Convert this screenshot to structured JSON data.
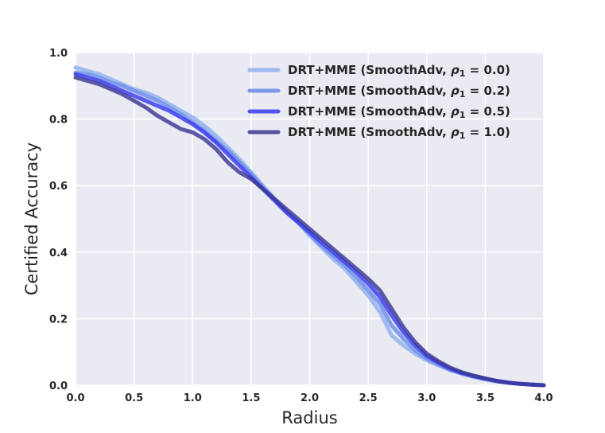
{
  "chart_data": {
    "type": "line",
    "title": "",
    "xlabel": "Radius",
    "ylabel": "Certified Accuracy",
    "xlim": [
      0.0,
      4.0
    ],
    "ylim": [
      0.0,
      1.0
    ],
    "xticks": [
      "0.0",
      "0.5",
      "1.0",
      "1.5",
      "2.0",
      "2.5",
      "3.0",
      "3.5",
      "4.0"
    ],
    "yticks": [
      "0.0",
      "0.2",
      "0.4",
      "0.6",
      "0.8",
      "1.0"
    ],
    "grid": true,
    "legend_position": "top-right",
    "background": "#eaeaf2",
    "series": [
      {
        "name": "DRT+MME (SmoothAdv, ρ1 = 0.0)",
        "legend_prefix": "DRT+MME (SmoothAdv, ",
        "legend_rho": "ρ",
        "legend_sub": "1",
        "legend_suffix": " = 0.0)",
        "color": "#8fb0ee",
        "x": [
          0.0,
          0.1,
          0.2,
          0.3,
          0.4,
          0.5,
          0.6,
          0.7,
          0.8,
          0.9,
          1.0,
          1.1,
          1.2,
          1.3,
          1.4,
          1.5,
          1.6,
          1.7,
          1.8,
          1.9,
          2.0,
          2.1,
          2.2,
          2.3,
          2.4,
          2.5,
          2.6,
          2.7,
          2.8,
          2.9,
          3.0,
          3.1,
          3.2,
          3.3,
          3.4,
          3.5,
          3.6,
          3.7,
          3.8,
          3.9,
          4.0
        ],
        "values": [
          0.955,
          0.945,
          0.935,
          0.92,
          0.905,
          0.89,
          0.88,
          0.865,
          0.845,
          0.825,
          0.805,
          0.78,
          0.75,
          0.715,
          0.68,
          0.64,
          0.6,
          0.56,
          0.52,
          0.49,
          0.45,
          0.415,
          0.38,
          0.35,
          0.31,
          0.27,
          0.22,
          0.15,
          0.12,
          0.095,
          0.075,
          0.06,
          0.045,
          0.035,
          0.025,
          0.018,
          0.012,
          0.007,
          0.004,
          0.002,
          0.0
        ]
      },
      {
        "name": "DRT+MME (SmoothAdv, ρ1 = 0.2)",
        "legend_prefix": "DRT+MME (SmoothAdv, ",
        "legend_rho": "ρ",
        "legend_sub": "1",
        "legend_suffix": " = 0.2)",
        "color": "#6b8cea",
        "x": [
          0.0,
          0.1,
          0.2,
          0.3,
          0.4,
          0.5,
          0.6,
          0.7,
          0.8,
          0.9,
          1.0,
          1.1,
          1.2,
          1.3,
          1.4,
          1.5,
          1.6,
          1.7,
          1.8,
          1.9,
          2.0,
          2.1,
          2.2,
          2.3,
          2.4,
          2.5,
          2.6,
          2.7,
          2.8,
          2.9,
          3.0,
          3.1,
          3.2,
          3.3,
          3.4,
          3.5,
          3.6,
          3.7,
          3.8,
          3.9,
          4.0
        ],
        "values": [
          0.94,
          0.935,
          0.925,
          0.91,
          0.9,
          0.885,
          0.87,
          0.855,
          0.835,
          0.815,
          0.79,
          0.765,
          0.735,
          0.705,
          0.67,
          0.635,
          0.595,
          0.56,
          0.52,
          0.49,
          0.455,
          0.42,
          0.39,
          0.36,
          0.325,
          0.285,
          0.245,
          0.18,
          0.14,
          0.105,
          0.08,
          0.063,
          0.047,
          0.035,
          0.026,
          0.018,
          0.012,
          0.007,
          0.004,
          0.002,
          0.0
        ]
      },
      {
        "name": "DRT+MME (SmoothAdv, ρ1 = 0.5)",
        "legend_prefix": "DRT+MME (SmoothAdv, ",
        "legend_rho": "ρ",
        "legend_sub": "1",
        "legend_suffix": " = 0.5)",
        "color": "#3a3af0",
        "x": [
          0.0,
          0.1,
          0.2,
          0.3,
          0.4,
          0.5,
          0.6,
          0.7,
          0.8,
          0.9,
          1.0,
          1.1,
          1.2,
          1.3,
          1.4,
          1.5,
          1.6,
          1.7,
          1.8,
          1.9,
          2.0,
          2.1,
          2.2,
          2.3,
          2.4,
          2.5,
          2.6,
          2.7,
          2.8,
          2.9,
          3.0,
          3.1,
          3.2,
          3.3,
          3.4,
          3.5,
          3.6,
          3.7,
          3.8,
          3.9,
          4.0
        ],
        "values": [
          0.935,
          0.925,
          0.915,
          0.9,
          0.885,
          0.87,
          0.855,
          0.84,
          0.825,
          0.805,
          0.785,
          0.76,
          0.73,
          0.695,
          0.66,
          0.625,
          0.59,
          0.555,
          0.52,
          0.49,
          0.46,
          0.43,
          0.4,
          0.37,
          0.34,
          0.305,
          0.265,
          0.21,
          0.16,
          0.12,
          0.088,
          0.068,
          0.05,
          0.037,
          0.028,
          0.02,
          0.013,
          0.008,
          0.004,
          0.002,
          0.0
        ]
      },
      {
        "name": "DRT+MME (SmoothAdv, ρ1 = 1.0)",
        "legend_prefix": "DRT+MME (SmoothAdv, ",
        "legend_rho": "ρ",
        "legend_sub": "1",
        "legend_suffix": " = 1.0)",
        "color": "#3c3894",
        "x": [
          0.0,
          0.1,
          0.2,
          0.3,
          0.4,
          0.5,
          0.6,
          0.7,
          0.8,
          0.9,
          1.0,
          1.1,
          1.2,
          1.3,
          1.4,
          1.5,
          1.6,
          1.7,
          1.8,
          1.9,
          2.0,
          2.1,
          2.2,
          2.3,
          2.4,
          2.5,
          2.6,
          2.7,
          2.8,
          2.9,
          3.0,
          3.1,
          3.2,
          3.3,
          3.4,
          3.5,
          3.6,
          3.7,
          3.8,
          3.9,
          4.0
        ],
        "values": [
          0.925,
          0.915,
          0.905,
          0.89,
          0.875,
          0.855,
          0.835,
          0.81,
          0.79,
          0.77,
          0.76,
          0.74,
          0.71,
          0.67,
          0.64,
          0.62,
          0.59,
          0.56,
          0.53,
          0.5,
          0.47,
          0.44,
          0.41,
          0.38,
          0.35,
          0.32,
          0.285,
          0.23,
          0.175,
          0.13,
          0.095,
          0.072,
          0.053,
          0.039,
          0.029,
          0.02,
          0.013,
          0.008,
          0.004,
          0.002,
          0.0
        ]
      }
    ]
  }
}
